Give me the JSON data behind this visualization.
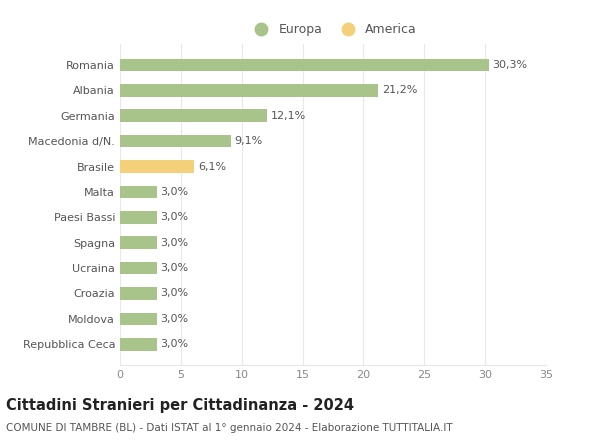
{
  "categories": [
    "Romania",
    "Albania",
    "Germania",
    "Macedonia d/N.",
    "Brasile",
    "Malta",
    "Paesi Bassi",
    "Spagna",
    "Ucraina",
    "Croazia",
    "Moldova",
    "Repubblica Ceca"
  ],
  "values": [
    30.3,
    21.2,
    12.1,
    9.1,
    6.1,
    3.0,
    3.0,
    3.0,
    3.0,
    3.0,
    3.0,
    3.0
  ],
  "labels": [
    "30,3%",
    "21,2%",
    "12,1%",
    "9,1%",
    "6,1%",
    "3,0%",
    "3,0%",
    "3,0%",
    "3,0%",
    "3,0%",
    "3,0%",
    "3,0%"
  ],
  "colors": [
    "#a8c48a",
    "#a8c48a",
    "#a8c48a",
    "#a8c48a",
    "#f5d07a",
    "#a8c48a",
    "#a8c48a",
    "#a8c48a",
    "#a8c48a",
    "#a8c48a",
    "#a8c48a",
    "#a8c48a"
  ],
  "europa_color": "#a8c48a",
  "america_color": "#f5d07a",
  "xlim": [
    0,
    35
  ],
  "xticks": [
    0,
    5,
    10,
    15,
    20,
    25,
    30,
    35
  ],
  "title": "Cittadini Stranieri per Cittadinanza - 2024",
  "subtitle": "COMUNE DI TAMBRE (BL) - Dati ISTAT al 1° gennaio 2024 - Elaborazione TUTTITALIA.IT",
  "title_fontsize": 10.5,
  "subtitle_fontsize": 7.5,
  "legend_europa": "Europa",
  "legend_america": "America",
  "bg_color": "#ffffff",
  "grid_color": "#e8e8e8",
  "label_fontsize": 8,
  "ytick_fontsize": 8,
  "xtick_fontsize": 8
}
